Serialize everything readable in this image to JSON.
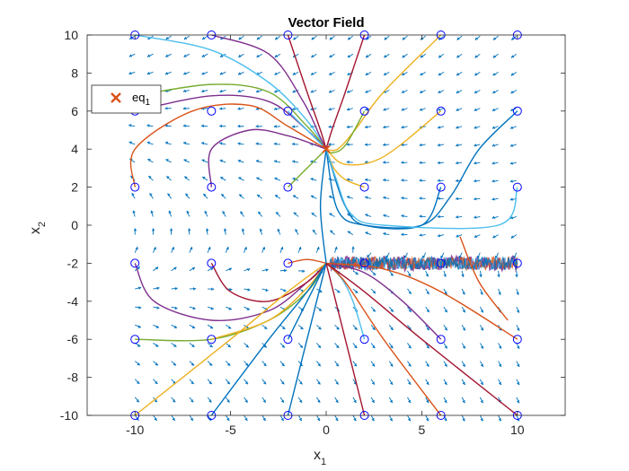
{
  "chart_data": {
    "type": "vector-field",
    "title": "Vector Field",
    "xlabel": {
      "base": "x",
      "sub": "1"
    },
    "ylabel": {
      "base": "x",
      "sub": "2"
    },
    "xlim": [
      -12.5,
      12.5
    ],
    "ylim": [
      -10,
      10
    ],
    "xticks": [
      -10,
      -5,
      0,
      5,
      10
    ],
    "yticks": [
      -10,
      -8,
      -6,
      -4,
      -2,
      0,
      2,
      4,
      6,
      8,
      10
    ],
    "grid": false,
    "legend": {
      "placement": "top-left",
      "entries": [
        {
          "label": {
            "base": "eq",
            "sub": "1"
          },
          "marker": "x",
          "color": "#D95319"
        }
      ]
    },
    "equilibrium": {
      "name": "eq1",
      "x": 0,
      "y": 4
    },
    "arrow_color": "#0072BD",
    "start_marker_color": "#0000FF",
    "palette": [
      "#0072BD",
      "#D95319",
      "#EDB120",
      "#7E2F8E",
      "#77AC30",
      "#4DBEEE",
      "#A2142F"
    ],
    "initial_points": [
      [
        -10,
        10
      ],
      [
        -6,
        10
      ],
      [
        -2,
        10
      ],
      [
        2,
        10
      ],
      [
        6,
        10
      ],
      [
        10,
        10
      ],
      [
        -10,
        6
      ],
      [
        -6,
        6
      ],
      [
        -2,
        6
      ],
      [
        2,
        6
      ],
      [
        6,
        6
      ],
      [
        10,
        6
      ],
      [
        -10,
        2
      ],
      [
        -6,
        2
      ],
      [
        -2,
        2
      ],
      [
        2,
        2
      ],
      [
        6,
        2
      ],
      [
        10,
        2
      ],
      [
        -10,
        -2
      ],
      [
        -6,
        -2
      ],
      [
        -2,
        -2
      ],
      [
        2,
        -2
      ],
      [
        6,
        -2
      ],
      [
        10,
        -2
      ],
      [
        -10,
        -6
      ],
      [
        -6,
        -6
      ],
      [
        -2,
        -6
      ],
      [
        2,
        -6
      ],
      [
        6,
        -6
      ],
      [
        10,
        -6
      ],
      [
        -10,
        -10
      ],
      [
        -6,
        -10
      ],
      [
        -2,
        -10
      ],
      [
        2,
        -10
      ],
      [
        6,
        -10
      ],
      [
        10,
        -10
      ]
    ],
    "trajectories": [
      {
        "color": "#4DBEEE",
        "points": [
          [
            -10,
            10
          ],
          [
            -6,
            9.2
          ],
          [
            -3,
            7.5
          ],
          [
            -1,
            5.5
          ],
          [
            0,
            4
          ]
        ]
      },
      {
        "color": "#7E2F8E",
        "points": [
          [
            -6,
            10
          ],
          [
            -3,
            9
          ],
          [
            -1.2,
            6.5
          ],
          [
            -0.3,
            4.6
          ],
          [
            0,
            4
          ]
        ]
      },
      {
        "color": "#A2142F",
        "points": [
          [
            -2,
            10
          ],
          [
            -1,
            7
          ],
          [
            -0.3,
            5
          ],
          [
            0,
            4
          ]
        ]
      },
      {
        "color": "#A2142F",
        "points": [
          [
            2,
            10
          ],
          [
            1,
            7
          ],
          [
            0.3,
            5
          ],
          [
            0,
            4
          ]
        ]
      },
      {
        "color": "#EDB120",
        "points": [
          [
            6,
            10
          ],
          [
            3,
            7
          ],
          [
            1.5,
            5
          ],
          [
            0.6,
            4
          ],
          [
            0,
            4
          ]
        ]
      },
      {
        "color": "#77AC30",
        "points": [
          [
            -10,
            6.8
          ],
          [
            -6,
            7.4
          ],
          [
            -3,
            7
          ],
          [
            -1,
            5.2
          ],
          [
            0,
            4
          ]
        ]
      },
      {
        "color": "#7E2F8E",
        "points": [
          [
            -10,
            6
          ],
          [
            -6,
            6.8
          ],
          [
            -3,
            6.5
          ],
          [
            -1,
            5
          ],
          [
            0,
            4
          ]
        ]
      },
      {
        "color": "#4DBEEE",
        "points": [
          [
            -2,
            6
          ],
          [
            -1,
            5
          ],
          [
            0,
            4
          ]
        ]
      },
      {
        "color": "#77AC30",
        "points": [
          [
            2,
            6
          ],
          [
            1,
            4.2
          ],
          [
            0.3,
            3.8
          ],
          [
            0,
            4
          ]
        ]
      },
      {
        "color": "#EDB120",
        "points": [
          [
            6,
            6
          ],
          [
            3,
            3.6
          ],
          [
            1,
            3.2
          ],
          [
            0,
            4
          ]
        ]
      },
      {
        "color": "#0072BD",
        "points": [
          [
            10,
            6
          ],
          [
            8,
            4
          ],
          [
            6.5,
            1.5
          ],
          [
            5,
            0
          ],
          [
            2,
            0
          ],
          [
            0.6,
            0.8
          ],
          [
            0,
            4
          ]
        ]
      },
      {
        "color": "#D95319",
        "points": [
          [
            -10,
            2
          ],
          [
            -10,
            4
          ],
          [
            -7,
            6
          ],
          [
            -4,
            6.3
          ],
          [
            -2,
            5.2
          ],
          [
            0,
            4
          ]
        ]
      },
      {
        "color": "#7E2F8E",
        "points": [
          [
            -6,
            2
          ],
          [
            -6,
            4
          ],
          [
            -4,
            5
          ],
          [
            -2,
            4.7
          ],
          [
            0,
            4
          ]
        ]
      },
      {
        "color": "#77AC30",
        "points": [
          [
            -2,
            2
          ],
          [
            -1,
            3
          ],
          [
            0,
            4
          ]
        ]
      },
      {
        "color": "#EDB120",
        "points": [
          [
            2,
            2
          ],
          [
            1,
            2.4
          ],
          [
            0.4,
            3
          ],
          [
            0,
            4
          ]
        ]
      },
      {
        "color": "#0072BD",
        "points": [
          [
            6,
            2
          ],
          [
            5,
            0
          ],
          [
            2,
            0
          ],
          [
            1,
            1
          ],
          [
            0.3,
            3
          ],
          [
            0,
            4
          ]
        ]
      },
      {
        "color": "#4DBEEE",
        "points": [
          [
            10,
            2
          ],
          [
            9,
            0
          ],
          [
            3,
            0
          ],
          [
            1.3,
            0.6
          ],
          [
            0.5,
            2.5
          ],
          [
            0,
            4
          ]
        ]
      },
      {
        "color": "#7E2F8E",
        "points": [
          [
            -10,
            -2
          ],
          [
            -9,
            -4
          ],
          [
            -6,
            -5
          ],
          [
            -3,
            -4.5
          ],
          [
            -1,
            -3
          ],
          [
            0,
            -2
          ]
        ]
      },
      {
        "color": "#A2142F",
        "points": [
          [
            -6,
            -2
          ],
          [
            -5,
            -3.5
          ],
          [
            -3,
            -4
          ],
          [
            -1,
            -3
          ],
          [
            0,
            -2
          ]
        ]
      },
      {
        "color": "#D95319",
        "points": [
          [
            -2,
            -2
          ],
          [
            -1,
            -1.8
          ],
          [
            0,
            -2
          ]
        ]
      },
      {
        "color": "#77AC30",
        "points": [
          [
            -10,
            -6
          ],
          [
            -6,
            -6
          ],
          [
            -3,
            -5
          ],
          [
            -1,
            -3.5
          ],
          [
            0,
            -2
          ]
        ]
      },
      {
        "color": "#EDB120",
        "points": [
          [
            -6,
            -6
          ],
          [
            -3,
            -5
          ],
          [
            -1,
            -3.3
          ],
          [
            0,
            -2
          ]
        ]
      },
      {
        "color": "#0072BD",
        "points": [
          [
            -2,
            -6
          ],
          [
            -1,
            -4
          ],
          [
            0,
            -2
          ]
        ]
      },
      {
        "color": "#4DBEEE",
        "points": [
          [
            2,
            -6
          ],
          [
            1.4,
            -4
          ],
          [
            0.8,
            -2.8
          ],
          [
            0,
            -2
          ]
        ]
      },
      {
        "color": "#7E2F8E",
        "points": [
          [
            6,
            -6
          ],
          [
            4,
            -4
          ],
          [
            2,
            -2.5
          ],
          [
            0,
            -2
          ]
        ]
      },
      {
        "color": "#D95319",
        "points": [
          [
            10,
            -6
          ],
          [
            6,
            -3.5
          ],
          [
            3,
            -2.3
          ],
          [
            0,
            -2
          ]
        ]
      },
      {
        "color": "#EDB120",
        "points": [
          [
            -10,
            -10
          ],
          [
            -5,
            -6
          ],
          [
            -2,
            -3.5
          ],
          [
            0,
            -2
          ]
        ]
      },
      {
        "color": "#0072BD",
        "points": [
          [
            -6,
            -10
          ],
          [
            -3,
            -6
          ],
          [
            -1,
            -3.5
          ],
          [
            0,
            -2
          ]
        ]
      },
      {
        "color": "#0072BD",
        "points": [
          [
            -2,
            -10
          ],
          [
            -1,
            -6
          ],
          [
            0,
            -2
          ]
        ]
      },
      {
        "color": "#A2142F",
        "points": [
          [
            2,
            -10
          ],
          [
            1,
            -6
          ],
          [
            0,
            -2
          ]
        ]
      },
      {
        "color": "#D95319",
        "points": [
          [
            6,
            -10
          ],
          [
            3,
            -6
          ],
          [
            1,
            -3
          ],
          [
            0,
            -2
          ]
        ]
      },
      {
        "color": "#A2142F",
        "points": [
          [
            10,
            -10
          ],
          [
            5,
            -6
          ],
          [
            2,
            -3.5
          ],
          [
            0,
            -2
          ]
        ]
      },
      {
        "color": "#0072BD",
        "points": [
          [
            0,
            -2
          ],
          [
            -0.3,
            1
          ],
          [
            0,
            4
          ]
        ]
      },
      {
        "color": "#D95319",
        "points": [
          [
            7,
            -0.6
          ],
          [
            8,
            -3
          ],
          [
            9.5,
            -5
          ]
        ]
      }
    ],
    "noise_band": {
      "x_start": 0.2,
      "x_end": 10,
      "y_center": -2,
      "amplitude": 0.35,
      "colors": [
        "#7E2F8E",
        "#4DBEEE",
        "#D95319",
        "#0072BD"
      ]
    }
  }
}
